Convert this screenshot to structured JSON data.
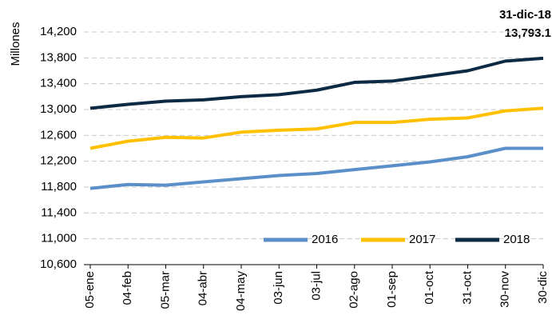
{
  "chart_data": {
    "type": "line",
    "y_label": "Millones",
    "annotation": [
      "31-dic-18",
      "13,793.1"
    ],
    "categories": [
      "05-ene",
      "04-feb",
      "05-mar",
      "04-abr",
      "04-may",
      "03-jun",
      "03-jul",
      "02-ago",
      "01-sep",
      "01-oct",
      "31-oct",
      "30-nov",
      "30-dic"
    ],
    "series": [
      {
        "name": "2016",
        "color": "#5b8fc9",
        "values": [
          11780,
          11840,
          11830,
          11880,
          11930,
          11980,
          12010,
          12070,
          12130,
          12190,
          12270,
          12400,
          12400
        ]
      },
      {
        "name": "2017",
        "color": "#ffc000",
        "values": [
          12400,
          12510,
          12570,
          12560,
          12650,
          12680,
          12700,
          12800,
          12800,
          12850,
          12870,
          12980,
          13020
        ]
      },
      {
        "name": "2018",
        "color": "#0d2a45",
        "values": [
          13020,
          13080,
          13130,
          13150,
          13200,
          13230,
          13300,
          13420,
          13440,
          13520,
          13600,
          13750,
          13793.1
        ]
      }
    ],
    "ylim": [
      10600,
      14200
    ],
    "yticks": [
      {
        "value": 10600,
        "label": "10,600"
      },
      {
        "value": 11000,
        "label": "11,000"
      },
      {
        "value": 11400,
        "label": "11,400"
      },
      {
        "value": 11800,
        "label": "11,800"
      },
      {
        "value": 12200,
        "label": "12,200"
      },
      {
        "value": 12600,
        "label": "12,600"
      },
      {
        "value": 13000,
        "label": "13,000"
      },
      {
        "value": 13400,
        "label": "13,400"
      },
      {
        "value": 13800,
        "label": "13,800"
      },
      {
        "value": 14200,
        "label": "14,200"
      }
    ],
    "grid": true,
    "legend": "bottom-right"
  }
}
